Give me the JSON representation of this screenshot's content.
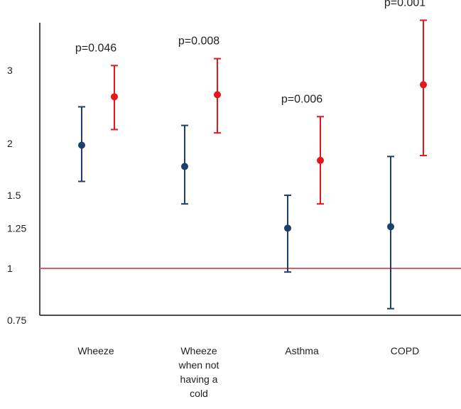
{
  "chart_data": {
    "type": "scatter",
    "y_scale": "log",
    "ylim": [
      0.73,
      4.0
    ],
    "y_ticks": [
      {
        "value": 0.75,
        "label": "0.75"
      },
      {
        "value": 1,
        "label": "1"
      },
      {
        "value": 1.25,
        "label": "1.25"
      },
      {
        "value": 1.5,
        "label": "1.5"
      },
      {
        "value": 2,
        "label": "2"
      },
      {
        "value": 3,
        "label": "3"
      }
    ],
    "categories": [
      {
        "label_lines": [
          "Wheeze"
        ]
      },
      {
        "label_lines": [
          "Wheeze",
          "when not",
          "having a",
          "cold"
        ]
      },
      {
        "label_lines": [
          "Asthma"
        ]
      },
      {
        "label_lines": [
          "COPD"
        ]
      }
    ],
    "series": [
      {
        "color": "#1f3f6b",
        "points": [
          {
            "estimate": 1.98,
            "lower": 1.62,
            "upper": 2.45
          },
          {
            "estimate": 1.76,
            "lower": 1.43,
            "upper": 2.21
          },
          {
            "estimate": 1.25,
            "lower": 0.98,
            "upper": 1.5
          },
          {
            "estimate": 1.26,
            "lower": 0.8,
            "upper": 1.86
          }
        ]
      },
      {
        "color": "#e8161b",
        "points": [
          {
            "estimate": 2.59,
            "lower": 2.16,
            "upper": 3.08
          },
          {
            "estimate": 2.62,
            "lower": 2.12,
            "upper": 3.2
          },
          {
            "estimate": 1.82,
            "lower": 1.43,
            "upper": 2.32
          },
          {
            "estimate": 2.77,
            "lower": 1.87,
            "upper": 3.96
          }
        ]
      }
    ],
    "annotations": [
      "p=0.046",
      "p=0.008",
      "p=0.006",
      "p=0.001"
    ],
    "reference_line": {
      "value": 1,
      "color": "#e8566a"
    },
    "grid": false,
    "legend": "none"
  }
}
